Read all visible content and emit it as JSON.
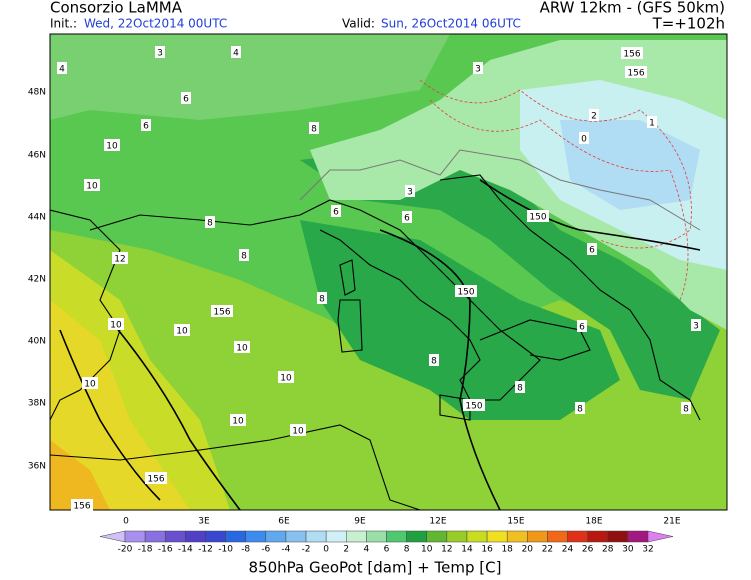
{
  "header": {
    "title": "Consorzio LaMMA",
    "model": "ARW 12km - (GFS 50km)",
    "init_label": "Init.:",
    "init": "Wed, 22Oct2014 00UTC",
    "valid_label": "Valid:",
    "valid": "Sun, 26Oct2014 06UTC",
    "step": "T=+102h"
  },
  "map": {
    "lat_labels": [
      "48N",
      "46N",
      "44N",
      "42N",
      "40N",
      "38N",
      "36N"
    ],
    "lon_labels": [
      "0",
      "3E",
      "6E",
      "9E",
      "12E",
      "15E",
      "18E",
      "21E"
    ],
    "contour_labels": [
      "3",
      "4",
      "4",
      "6",
      "6",
      "8",
      "10",
      "10",
      "8",
      "8",
      "12",
      "10",
      "10",
      "156",
      "10",
      "10",
      "10",
      "156",
      "156",
      "10",
      "10",
      "8",
      "8",
      "6",
      "6",
      "150",
      "150",
      "150",
      "156",
      "3",
      "3",
      "2",
      "1",
      "156",
      "0",
      "3",
      "6",
      "6",
      "8",
      "8",
      "8"
    ]
  },
  "colorbar": {
    "labels": [
      -20,
      -18,
      -16,
      -14,
      -12,
      -10,
      -8,
      -6,
      -4,
      -2,
      0,
      2,
      4,
      6,
      8,
      10,
      12,
      14,
      16,
      18,
      20,
      22,
      24,
      26,
      28,
      30,
      32
    ],
    "colors": [
      "#d0c0f8",
      "#a890f0",
      "#8870e0",
      "#6850d0",
      "#5040c8",
      "#3848d0",
      "#2868e0",
      "#3c8cf0",
      "#60a8f0",
      "#88c0f0",
      "#b0dcf4",
      "#d0f0f8",
      "#c8f0d0",
      "#98e0a8",
      "#50c870",
      "#20a040",
      "#60b830",
      "#98cc28",
      "#c8dc20",
      "#f0e020",
      "#f0c020",
      "#f09818",
      "#f06818",
      "#e03018",
      "#b81810",
      "#901010",
      "#a01880",
      "#e080f0"
    ]
  },
  "footer": {
    "title": "850hPa GeoPot [dam] + Temp [C]"
  }
}
